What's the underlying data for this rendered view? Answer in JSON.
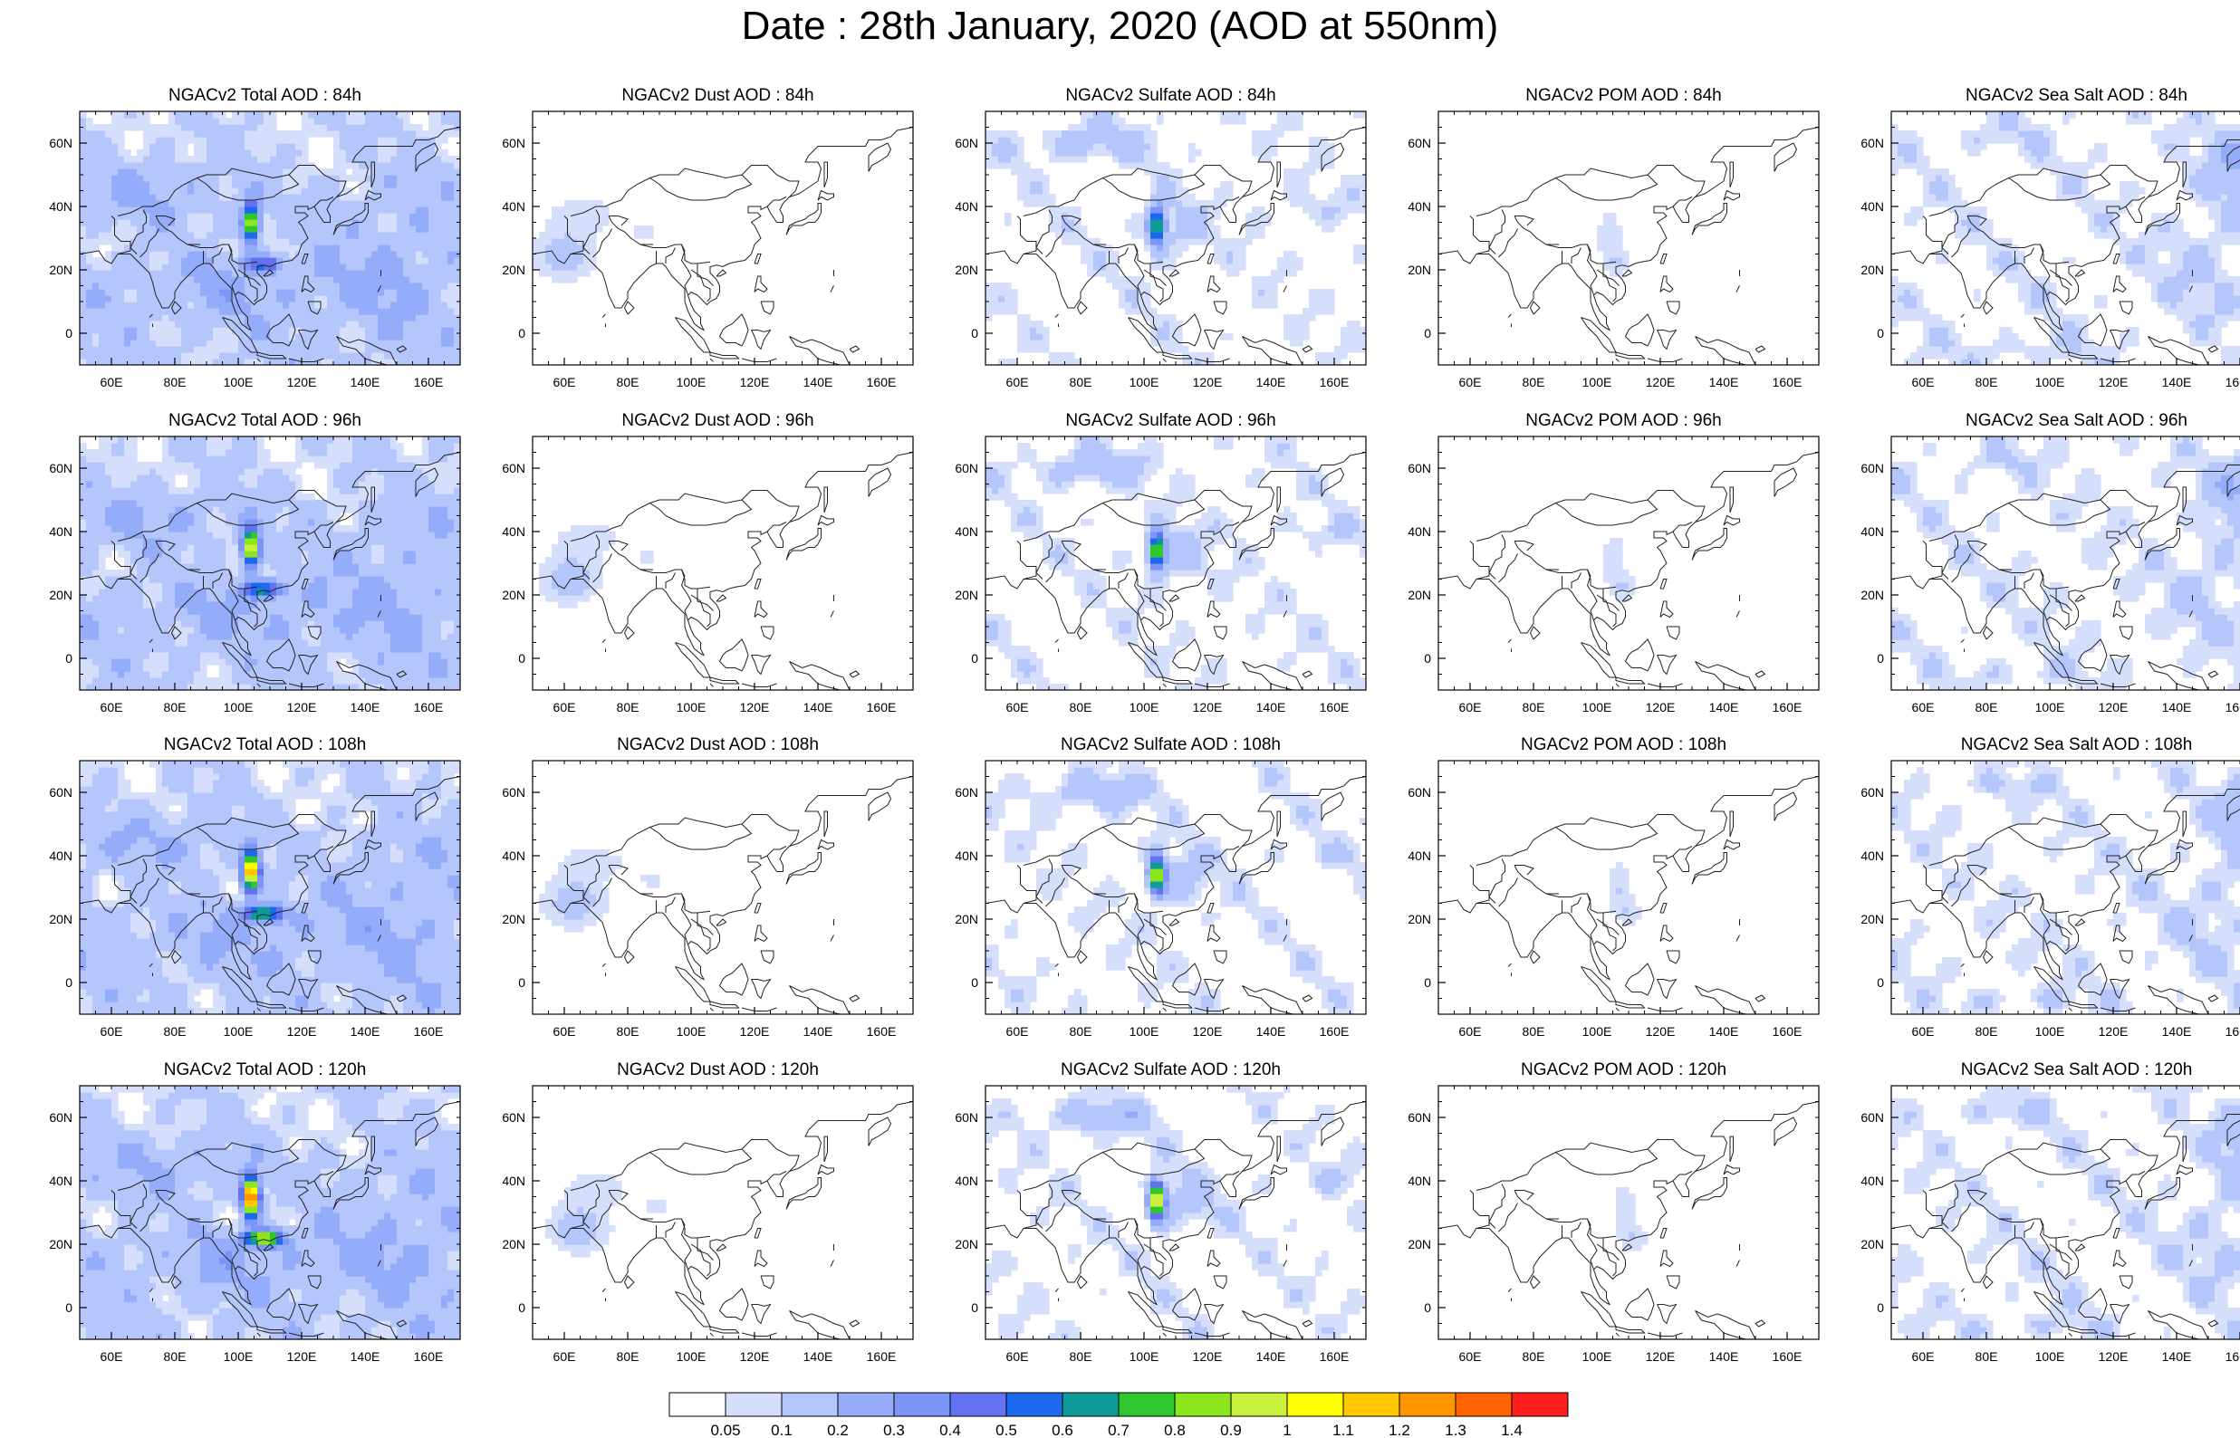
{
  "title": "Date : 28th January, 2020 (AOD at 550nm)",
  "rows": [
    "84h",
    "96h",
    "108h",
    "120h"
  ],
  "columns": [
    "Total",
    "Dust",
    "Sulfate",
    "POM",
    "Sea Salt"
  ],
  "panels": [
    [
      "NGACv2 Total AOD : 84h",
      "NGACv2 Dust AOD : 84h",
      "NGACv2 Sulfate AOD : 84h",
      "NGACv2 POM AOD : 84h",
      "NGACv2 Sea Salt AOD : 84h"
    ],
    [
      "NGACv2 Total AOD : 96h",
      "NGACv2 Dust AOD : 96h",
      "NGACv2 Sulfate AOD : 96h",
      "NGACv2 POM AOD : 96h",
      "NGACv2 Sea Salt AOD : 96h"
    ],
    [
      "NGACv2 Total AOD : 108h",
      "NGACv2 Dust AOD : 108h",
      "NGACv2 Sulfate AOD : 108h",
      "NGACv2 POM AOD : 108h",
      "NGACv2 Sea Salt AOD : 108h"
    ],
    [
      "NGACv2 Total AOD : 120h",
      "NGACv2 Dust AOD : 120h",
      "NGACv2 Sulfate AOD : 120h",
      "NGACv2 POM AOD : 120h",
      "NGACv2 Sea Salt  AOD : 120h"
    ]
  ],
  "map": {
    "lon_range": [
      50,
      170
    ],
    "lat_range": [
      -10,
      70
    ],
    "lon_ticks": [
      60,
      80,
      100,
      120,
      140,
      160
    ],
    "lon_tick_labels": [
      "60E",
      "80E",
      "100E",
      "120E",
      "140E",
      "160E"
    ],
    "lat_ticks": [
      0,
      20,
      40,
      60
    ],
    "lat_tick_labels": [
      "0",
      "20N",
      "40N",
      "60N"
    ]
  },
  "colorbar": {
    "labels": [
      "0.05",
      "0.1",
      "0.2",
      "0.3",
      "0.4",
      "0.5",
      "0.6",
      "0.7",
      "0.8",
      "0.9",
      "1",
      "1.1",
      "1.2",
      "1.3",
      "1.4"
    ],
    "colors": [
      "#ffffff",
      "#d5dffc",
      "#b4c6fb",
      "#94acf9",
      "#7b96f6",
      "#6272f0",
      "#1e68f0",
      "#0e9a96",
      "#2ec82e",
      "#8ce61e",
      "#c8f03c",
      "#ffff00",
      "#ffc800",
      "#ff9600",
      "#ff6400",
      "#ff1e1e"
    ]
  },
  "fields": {
    "Total": {
      "bg": 0.12,
      "blobs": [
        [
          75,
          45,
          25,
          10,
          0.12
        ],
        [
          95,
          15,
          40,
          10,
          0.1
        ],
        [
          150,
          20,
          20,
          25,
          0.08
        ]
      ],
      "hot": [
        [
          104,
          35,
          2.6,
          6,
          0.9
        ],
        [
          108,
          22,
          6,
          2.5,
          0.4
        ]
      ],
      "hot_growth": 0.15
    },
    "Dust": {
      "bg": 0,
      "blobs": [
        [
          60,
          25,
          10,
          8,
          0.15
        ],
        [
          66,
          38,
          12,
          6,
          0.08
        ],
        [
          85,
          32,
          6,
          4,
          0.06
        ]
      ],
      "hot": [],
      "hot_growth": 0
    },
    "Sulfate": {
      "bg": 0.02,
      "blobs": [
        [
          80,
          60,
          18,
          6,
          0.15
        ],
        [
          108,
          32,
          10,
          10,
          0.12
        ],
        [
          150,
          40,
          20,
          4,
          0.06
        ]
      ],
      "hot": [
        [
          104,
          34,
          2.4,
          5.5,
          0.75
        ]
      ],
      "hot_growth": 0.12
    },
    "POM": {
      "bg": 0,
      "blobs": [
        [
          104,
          30,
          4,
          10,
          0.1
        ],
        [
          108,
          22,
          4,
          4,
          0.08
        ]
      ],
      "hot": [],
      "hot_growth": 0
    },
    "Sea Salt": {
      "bg": 0.03,
      "blobs": [
        [
          160,
          55,
          10,
          12,
          0.15
        ],
        [
          150,
          25,
          14,
          20,
          0.08
        ],
        [
          80,
          62,
          15,
          4,
          0.07
        ],
        [
          90,
          -5,
          20,
          4,
          0.07
        ]
      ],
      "hot": [],
      "hot_growth": 0
    }
  }
}
